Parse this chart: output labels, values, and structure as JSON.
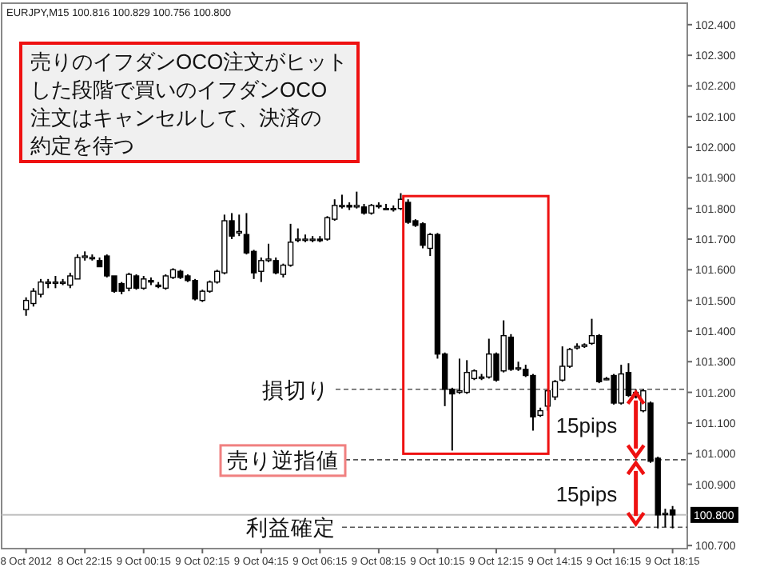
{
  "chart_data": {
    "type": "candlestick",
    "subtitle": "EURJPY,M15  100.816 100.829 100.756 100.800",
    "x": [
      "2012-10-08T20:15",
      "2012-10-08T20:30",
      "2012-10-08T20:45",
      "2012-10-08T21:00",
      "2012-10-08T21:15",
      "2012-10-08T21:30",
      "2012-10-08T21:45",
      "2012-10-08T22:00",
      "2012-10-08T22:15",
      "2012-10-08T22:30",
      "2012-10-08T22:45",
      "2012-10-08T23:00",
      "2012-10-08T23:15",
      "2012-10-08T23:30",
      "2012-10-08T23:45",
      "2012-10-09T00:00",
      "2012-10-09T00:15",
      "2012-10-09T00:30",
      "2012-10-09T00:45",
      "2012-10-09T01:00",
      "2012-10-09T01:15",
      "2012-10-09T01:30",
      "2012-10-09T01:45",
      "2012-10-09T02:00",
      "2012-10-09T02:15",
      "2012-10-09T02:30",
      "2012-10-09T02:45",
      "2012-10-09T03:00",
      "2012-10-09T03:15",
      "2012-10-09T03:30",
      "2012-10-09T03:45",
      "2012-10-09T04:00",
      "2012-10-09T04:15",
      "2012-10-09T04:30",
      "2012-10-09T04:45",
      "2012-10-09T05:00",
      "2012-10-09T05:15",
      "2012-10-09T05:30",
      "2012-10-09T05:45",
      "2012-10-09T06:00",
      "2012-10-09T06:15",
      "2012-10-09T06:30",
      "2012-10-09T06:45",
      "2012-10-09T07:00",
      "2012-10-09T07:15",
      "2012-10-09T07:30",
      "2012-10-09T07:45",
      "2012-10-09T08:00",
      "2012-10-09T08:15",
      "2012-10-09T08:30",
      "2012-10-09T08:45",
      "2012-10-09T09:00",
      "2012-10-09T09:15",
      "2012-10-09T09:30",
      "2012-10-09T09:45",
      "2012-10-09T10:00",
      "2012-10-09T10:15",
      "2012-10-09T10:30",
      "2012-10-09T10:45",
      "2012-10-09T11:00",
      "2012-10-09T11:15",
      "2012-10-09T11:30",
      "2012-10-09T11:45",
      "2012-10-09T12:00",
      "2012-10-09T12:15",
      "2012-10-09T12:30",
      "2012-10-09T12:45",
      "2012-10-09T13:00",
      "2012-10-09T13:15",
      "2012-10-09T13:30",
      "2012-10-09T13:45",
      "2012-10-09T14:00",
      "2012-10-09T14:15",
      "2012-10-09T14:30",
      "2012-10-09T14:45",
      "2012-10-09T15:00",
      "2012-10-09T15:15",
      "2012-10-09T15:30",
      "2012-10-09T15:45",
      "2012-10-09T16:00",
      "2012-10-09T16:15",
      "2012-10-09T16:30",
      "2012-10-09T16:45",
      "2012-10-09T17:00",
      "2012-10-09T17:15",
      "2012-10-09T17:30",
      "2012-10-09T17:45",
      "2012-10-09T18:00",
      "2012-10-09T18:15"
    ],
    "ohlc": [
      [
        101.47,
        101.51,
        101.45,
        101.5
      ],
      [
        101.49,
        101.54,
        101.48,
        101.53
      ],
      [
        101.52,
        101.57,
        101.51,
        101.56
      ],
      [
        101.56,
        101.57,
        101.54,
        101.56
      ],
      [
        101.56,
        101.58,
        101.54,
        101.56
      ],
      [
        101.56,
        101.57,
        101.55,
        101.56
      ],
      [
        101.55,
        101.59,
        101.54,
        101.58
      ],
      [
        101.57,
        101.65,
        101.57,
        101.64
      ],
      [
        101.64,
        101.66,
        101.63,
        101.645
      ],
      [
        101.64,
        101.65,
        101.63,
        101.64
      ],
      [
        101.63,
        101.64,
        101.61,
        101.61
      ],
      [
        101.645,
        101.65,
        101.575,
        101.58
      ],
      [
        101.58,
        101.58,
        101.525,
        101.53
      ],
      [
        101.555,
        101.56,
        101.52,
        101.53
      ],
      [
        101.54,
        101.59,
        101.53,
        101.585
      ],
      [
        101.58,
        101.585,
        101.535,
        101.54
      ],
      [
        101.54,
        101.58,
        101.535,
        101.57
      ],
      [
        101.565,
        101.575,
        101.55,
        101.56
      ],
      [
        101.55,
        101.56,
        101.54,
        101.545
      ],
      [
        101.54,
        101.585,
        101.535,
        101.58
      ],
      [
        101.575,
        101.605,
        101.57,
        101.6
      ],
      [
        101.595,
        101.6,
        101.57,
        101.575
      ],
      [
        101.58,
        101.585,
        101.56,
        101.565
      ],
      [
        101.565,
        101.57,
        101.5,
        101.505
      ],
      [
        101.5,
        101.535,
        101.495,
        101.53
      ],
      [
        101.53,
        101.565,
        101.525,
        101.56
      ],
      [
        101.56,
        101.6,
        101.555,
        101.595
      ],
      [
        101.59,
        101.78,
        101.585,
        101.76
      ],
      [
        101.76,
        101.785,
        101.7,
        101.71
      ],
      [
        101.72,
        101.78,
        101.71,
        101.725
      ],
      [
        101.715,
        101.785,
        101.65,
        101.655
      ],
      [
        101.66,
        101.665,
        101.57,
        101.59
      ],
      [
        101.595,
        101.64,
        101.56,
        101.63
      ],
      [
        101.63,
        101.685,
        101.625,
        101.635
      ],
      [
        101.63,
        101.64,
        101.585,
        101.59
      ],
      [
        101.585,
        101.62,
        101.575,
        101.615
      ],
      [
        101.615,
        101.75,
        101.61,
        101.69
      ],
      [
        101.7,
        101.735,
        101.69,
        101.7
      ],
      [
        101.7,
        101.715,
        101.69,
        101.7
      ],
      [
        101.7,
        101.71,
        101.69,
        101.7
      ],
      [
        101.7,
        101.71,
        101.69,
        101.695
      ],
      [
        101.7,
        101.775,
        101.695,
        101.77
      ],
      [
        101.765,
        101.83,
        101.76,
        101.81
      ],
      [
        101.81,
        101.845,
        101.8,
        101.81
      ],
      [
        101.81,
        101.82,
        101.795,
        101.805
      ],
      [
        101.805,
        101.855,
        101.8,
        101.81
      ],
      [
        101.805,
        101.815,
        101.78,
        101.785
      ],
      [
        101.785,
        101.815,
        101.78,
        101.81
      ],
      [
        101.81,
        101.82,
        101.8,
        101.81
      ],
      [
        101.8,
        101.815,
        101.795,
        101.8
      ],
      [
        101.8,
        101.81,
        101.79,
        101.8
      ],
      [
        101.8,
        101.85,
        101.795,
        101.83
      ],
      [
        101.82,
        101.83,
        101.75,
        101.755
      ],
      [
        101.76,
        101.765,
        101.74,
        101.745
      ],
      [
        101.75,
        101.755,
        101.67,
        101.68
      ],
      [
        101.67,
        101.72,
        101.645,
        101.715
      ],
      [
        101.715,
        101.72,
        101.31,
        101.325
      ],
      [
        101.325,
        101.33,
        101.155,
        101.21
      ],
      [
        101.21,
        101.215,
        101.01,
        101.195
      ],
      [
        101.2,
        101.31,
        101.195,
        101.205
      ],
      [
        101.2,
        101.305,
        101.195,
        101.265
      ],
      [
        101.245,
        101.275,
        101.24,
        101.27
      ],
      [
        101.25,
        101.26,
        101.24,
        101.25
      ],
      [
        101.25,
        101.375,
        101.245,
        101.325
      ],
      [
        101.325,
        101.33,
        101.235,
        101.24
      ],
      [
        101.27,
        101.435,
        101.265,
        101.385
      ],
      [
        101.38,
        101.39,
        101.27,
        101.275
      ],
      [
        101.28,
        101.3,
        101.27,
        101.28
      ],
      [
        101.275,
        101.29,
        101.25,
        101.255
      ],
      [
        101.255,
        101.26,
        101.075,
        101.12
      ],
      [
        101.125,
        101.15,
        101.12,
        101.14
      ],
      [
        101.155,
        101.21,
        101.14,
        101.205
      ],
      [
        101.185,
        101.24,
        101.175,
        101.235
      ],
      [
        101.24,
        101.35,
        101.235,
        101.285
      ],
      [
        101.285,
        101.345,
        101.28,
        101.34
      ],
      [
        101.345,
        101.36,
        101.34,
        101.35
      ],
      [
        101.35,
        101.36,
        101.345,
        101.355
      ],
      [
        101.36,
        101.44,
        101.355,
        101.385
      ],
      [
        101.385,
        101.39,
        101.23,
        101.235
      ],
      [
        101.245,
        101.25,
        101.24,
        101.245
      ],
      [
        101.255,
        101.26,
        101.16,
        101.165
      ],
      [
        101.165,
        101.29,
        101.16,
        101.26
      ],
      [
        101.265,
        101.295,
        101.185,
        101.19
      ],
      [
        101.2,
        101.21,
        101.18,
        101.185
      ],
      [
        101.14,
        101.21,
        101.135,
        101.205
      ],
      [
        101.165,
        101.17,
        100.97,
        100.975
      ],
      [
        100.985,
        100.99,
        100.756,
        100.8
      ],
      [
        100.805,
        100.82,
        100.76,
        100.805
      ],
      [
        100.816,
        100.829,
        100.756,
        100.8
      ]
    ],
    "xlim": [
      "2012-10-08T19:25",
      "2012-10-09T18:45"
    ],
    "xticks": [
      {
        "value": "2012-10-08T20:15",
        "label": "8 Oct 2012"
      },
      {
        "value": "2012-10-08T22:15",
        "label": "8 Oct 22:15"
      },
      {
        "value": "2012-10-09T00:15",
        "label": "9 Oct 00:15"
      },
      {
        "value": "2012-10-09T02:15",
        "label": "9 Oct 02:15"
      },
      {
        "value": "2012-10-09T04:15",
        "label": "9 Oct 04:15"
      },
      {
        "value": "2012-10-09T06:15",
        "label": "9 Oct 06:15"
      },
      {
        "value": "2012-10-09T08:15",
        "label": "9 Oct 08:15"
      },
      {
        "value": "2012-10-09T10:15",
        "label": "9 Oct 10:15"
      },
      {
        "value": "2012-10-09T12:15",
        "label": "9 Oct 12:15"
      },
      {
        "value": "2012-10-09T14:15",
        "label": "9 Oct 14:15"
      },
      {
        "value": "2012-10-09T16:15",
        "label": "9 Oct 16:15"
      },
      {
        "value": "2012-10-09T18:15",
        "label": "9 Oct 18:15"
      }
    ],
    "ylim": [
      100.69,
      102.47
    ],
    "yticks": [
      {
        "value": 102.4,
        "label": "102.400"
      },
      {
        "value": 102.3,
        "label": "102.300"
      },
      {
        "value": 102.2,
        "label": "102.200"
      },
      {
        "value": 102.1,
        "label": "102.100"
      },
      {
        "value": 102.0,
        "label": "102.000"
      },
      {
        "value": 101.9,
        "label": "101.900"
      },
      {
        "value": 101.8,
        "label": "101.800"
      },
      {
        "value": 101.7,
        "label": "101.700"
      },
      {
        "value": 101.6,
        "label": "101.600"
      },
      {
        "value": 101.5,
        "label": "101.500"
      },
      {
        "value": 101.4,
        "label": "101.400"
      },
      {
        "value": 101.3,
        "label": "101.300"
      },
      {
        "value": 101.2,
        "label": "101.200"
      },
      {
        "value": 101.1,
        "label": "101.100"
      },
      {
        "value": 101.0,
        "label": "101.000"
      },
      {
        "value": 100.9,
        "label": "100.900"
      },
      {
        "value": 100.7,
        "label": "100.700"
      }
    ],
    "ref_lines": [
      {
        "axis": "y",
        "value": 101.21,
        "label": "損切り",
        "line_style": "dashed",
        "color": "#555555"
      },
      {
        "axis": "y",
        "value": 100.98,
        "label": "売り逆指値",
        "line_style": "dashed",
        "color": "#555555"
      },
      {
        "axis": "y",
        "value": 100.76,
        "label": "利益確定",
        "line_style": "dashed",
        "color": "#555555"
      },
      {
        "axis": "y",
        "value": 100.8,
        "label": "100.800",
        "line_style": "solid",
        "color": "#c0c0c0"
      }
    ],
    "annotations": [
      "売りのイフダンOCO注文がヒット",
      "した段階で買いのイフダンOCO",
      "注文はキャンセルして、決済の",
      "約定を待つ",
      "15pips",
      "15pips"
    ],
    "grid": false
  }
}
